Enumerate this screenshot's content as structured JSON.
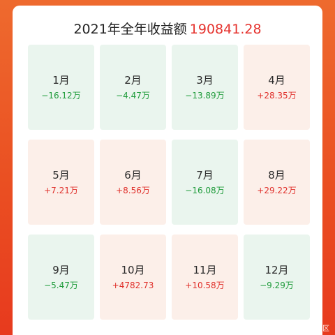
{
  "header": {
    "title": "2021年全年收益额",
    "total": "190841.28"
  },
  "colors": {
    "gain_text": "#e0302b",
    "loss_text": "#1e9b3a",
    "gain_bg": "#fcefe9",
    "loss_bg": "#eaf5ee"
  },
  "months": [
    {
      "label": "1月",
      "amount": "−16.12万",
      "trend": "loss"
    },
    {
      "label": "2月",
      "amount": "−4.47万",
      "trend": "loss"
    },
    {
      "label": "3月",
      "amount": "−13.89万",
      "trend": "loss"
    },
    {
      "label": "4月",
      "amount": "+28.35万",
      "trend": "gain"
    },
    {
      "label": "5月",
      "amount": "+7.21万",
      "trend": "gain"
    },
    {
      "label": "6月",
      "amount": "+8.56万",
      "trend": "gain"
    },
    {
      "label": "7月",
      "amount": "−16.08万",
      "trend": "loss"
    },
    {
      "label": "8月",
      "amount": "+29.22万",
      "trend": "gain"
    },
    {
      "label": "9月",
      "amount": "−5.47万",
      "trend": "loss"
    },
    {
      "label": "10月",
      "amount": "+4782.73",
      "trend": "gain"
    },
    {
      "label": "11月",
      "amount": "+10.58万",
      "trend": "gain"
    },
    {
      "label": "12月",
      "amount": "−9.29万",
      "trend": "loss"
    }
  ],
  "watermark": "@稀土掘金技术社区"
}
